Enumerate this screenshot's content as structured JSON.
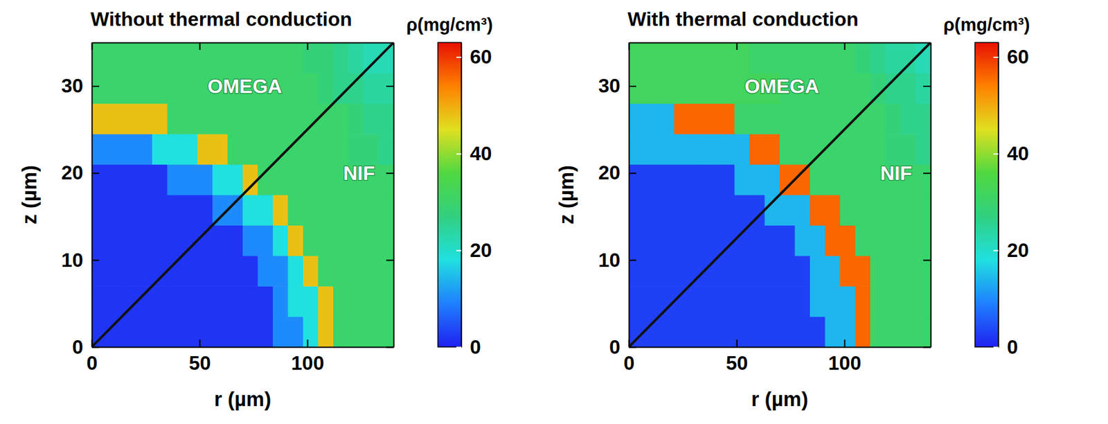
{
  "chart_data": [
    {
      "type": "heatmap",
      "title": "Without thermal conduction",
      "x_label": "r (µm)",
      "y_label": "z (µm)",
      "xlim": [
        0,
        140
      ],
      "ylim": [
        0,
        35
      ],
      "xticks": [
        0,
        50,
        100
      ],
      "yticks": [
        0,
        10,
        20,
        30
      ],
      "x_bins": [
        0,
        7,
        14,
        21,
        28,
        35,
        42,
        49,
        56,
        63,
        70,
        77,
        84,
        91,
        98,
        105,
        112,
        119,
        126,
        133,
        140
      ],
      "y_bins": [
        0,
        3.5,
        7,
        10.5,
        14,
        17.5,
        21,
        24.5,
        28,
        31.5,
        35
      ],
      "values": [
        [
          2,
          2,
          2,
          2,
          2,
          2,
          2,
          2,
          2,
          2,
          2,
          2,
          10,
          10,
          18,
          48,
          30,
          30,
          30,
          30
        ],
        [
          2,
          2,
          2,
          2,
          2,
          2,
          2,
          2,
          2,
          2,
          2,
          2,
          10,
          18,
          18,
          48,
          30,
          30,
          30,
          30
        ],
        [
          2,
          2,
          2,
          2,
          2,
          2,
          2,
          2,
          2,
          2,
          2,
          10,
          10,
          18,
          48,
          30,
          30,
          30,
          30,
          30
        ],
        [
          2,
          2,
          2,
          2,
          2,
          2,
          2,
          2,
          2,
          2,
          10,
          10,
          18,
          48,
          30,
          30,
          30,
          30,
          30,
          30
        ],
        [
          2,
          2,
          2,
          2,
          2,
          2,
          2,
          2,
          10,
          10,
          18,
          18,
          48,
          30,
          30,
          30,
          30,
          30,
          30,
          30
        ],
        [
          2,
          2,
          2,
          2,
          2,
          10,
          10,
          10,
          18,
          18,
          48,
          30,
          30,
          30,
          30,
          30,
          30,
          30,
          30,
          30
        ],
        [
          10,
          10,
          10,
          10,
          18,
          18,
          18,
          48,
          48,
          30,
          30,
          30,
          30,
          30,
          30,
          30,
          30,
          28,
          28,
          26
        ],
        [
          48,
          48,
          48,
          48,
          48,
          30,
          30,
          30,
          30,
          30,
          30,
          30,
          30,
          30,
          30,
          30,
          30,
          28,
          26,
          26
        ],
        [
          30,
          30,
          30,
          30,
          30,
          30,
          30,
          30,
          30,
          30,
          30,
          30,
          30,
          30,
          30,
          28,
          26,
          26,
          24,
          24
        ],
        [
          30,
          30,
          30,
          30,
          30,
          30,
          30,
          30,
          30,
          30,
          30,
          30,
          30,
          30,
          28,
          28,
          26,
          24,
          22,
          22
        ]
      ],
      "colorbar": {
        "label": "ρ(mg/cm³)",
        "range": [
          0,
          63
        ],
        "ticks": [
          0,
          20,
          40,
          60
        ],
        "colors": [
          "#2020f0",
          "#1e80ff",
          "#20e0e0",
          "#30d080",
          "#50d840",
          "#e0e020",
          "#ff8000",
          "#e81000"
        ]
      },
      "annotations": [
        {
          "text": "OMEGA",
          "x": 71,
          "y": 30
        },
        {
          "text": "NIF",
          "x": 124,
          "y": 20
        }
      ],
      "divider": {
        "x": [
          0,
          140
        ],
        "y": [
          0,
          35
        ]
      }
    },
    {
      "type": "heatmap",
      "title": "With thermal conduction",
      "x_label": "r (µm)",
      "y_label": "z (µm)",
      "xlim": [
        0,
        140
      ],
      "ylim": [
        0,
        35
      ],
      "xticks": [
        0,
        50,
        100
      ],
      "yticks": [
        0,
        10,
        20,
        30
      ],
      "x_bins": [
        0,
        7,
        14,
        21,
        28,
        35,
        42,
        49,
        56,
        63,
        70,
        77,
        84,
        91,
        98,
        105,
        112,
        119,
        126,
        133,
        140
      ],
      "y_bins": [
        0,
        3.5,
        7,
        10.5,
        14,
        17.5,
        21,
        24.5,
        28,
        31.5,
        35
      ],
      "values": [
        [
          3,
          3,
          3,
          3,
          3,
          3,
          3,
          3,
          3,
          3,
          3,
          3,
          3,
          14,
          14,
          56,
          30,
          30,
          30,
          30
        ],
        [
          3,
          3,
          3,
          3,
          3,
          3,
          3,
          3,
          3,
          3,
          3,
          3,
          14,
          14,
          14,
          56,
          30,
          30,
          30,
          30
        ],
        [
          3,
          3,
          3,
          3,
          3,
          3,
          3,
          3,
          3,
          3,
          3,
          3,
          14,
          14,
          56,
          56,
          30,
          30,
          30,
          30
        ],
        [
          3,
          3,
          3,
          3,
          3,
          3,
          3,
          3,
          3,
          3,
          3,
          14,
          14,
          56,
          56,
          30,
          30,
          30,
          30,
          30
        ],
        [
          3,
          3,
          3,
          3,
          3,
          3,
          3,
          3,
          3,
          14,
          14,
          14,
          56,
          56,
          30,
          30,
          30,
          30,
          30,
          30
        ],
        [
          3,
          3,
          3,
          3,
          3,
          3,
          3,
          14,
          14,
          14,
          56,
          56,
          30,
          30,
          30,
          30,
          30,
          30,
          30,
          30
        ],
        [
          14,
          14,
          14,
          14,
          14,
          14,
          14,
          14,
          56,
          56,
          30,
          30,
          30,
          30,
          30,
          30,
          30,
          28,
          28,
          26
        ],
        [
          14,
          14,
          14,
          56,
          56,
          56,
          56,
          30,
          30,
          30,
          30,
          30,
          30,
          30,
          30,
          30,
          30,
          28,
          26,
          26
        ],
        [
          32,
          32,
          32,
          32,
          32,
          32,
          32,
          32,
          32,
          32,
          30,
          30,
          30,
          30,
          30,
          30,
          28,
          26,
          26,
          24
        ],
        [
          32,
          32,
          32,
          32,
          32,
          32,
          32,
          32,
          30,
          30,
          30,
          30,
          30,
          30,
          30,
          28,
          26,
          24,
          24,
          22
        ]
      ],
      "colorbar": {
        "label": "ρ(mg/cm³)",
        "range": [
          0,
          63
        ],
        "ticks": [
          0,
          20,
          40,
          60
        ],
        "colors": [
          "#2020f0",
          "#1e80ff",
          "#20e0e0",
          "#30d080",
          "#50d840",
          "#e0e020",
          "#ff8000",
          "#e81000"
        ]
      },
      "annotations": [
        {
          "text": "OMEGA",
          "x": 71,
          "y": 30
        },
        {
          "text": "NIF",
          "x": 124,
          "y": 20
        }
      ],
      "divider": {
        "x": [
          0,
          140
        ],
        "y": [
          0,
          35
        ]
      }
    }
  ]
}
